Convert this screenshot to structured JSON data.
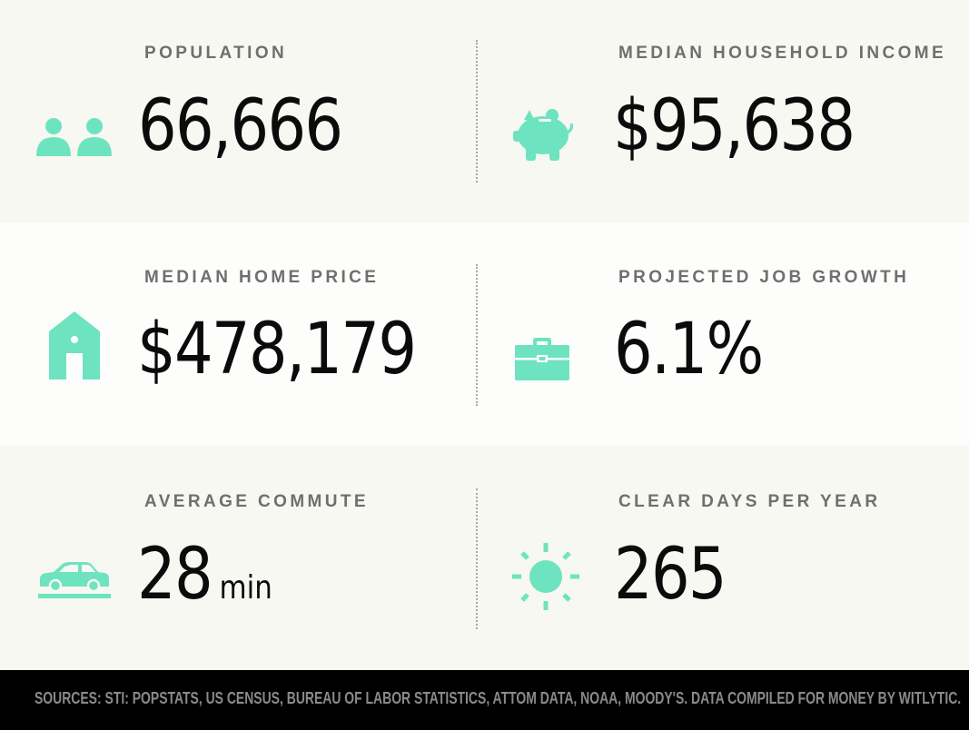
{
  "colors": {
    "icon": "#6ee3bf",
    "value_text": "#0b0b0b",
    "label_text": "#6f6f6f",
    "footer_bg": "#000000",
    "footer_text": "#8a8a8a"
  },
  "stats": {
    "population": {
      "label": "POPULATION",
      "value": "66,666",
      "icon": "people-icon"
    },
    "income": {
      "label": "MEDIAN HOUSEHOLD INCOME",
      "value": "$95,638",
      "icon": "piggy-bank-icon"
    },
    "home_price": {
      "label": "MEDIAN HOME PRICE",
      "value": "$478,179",
      "icon": "house-icon"
    },
    "job_growth": {
      "label": "PROJECTED JOB GROWTH",
      "value": "6.1%",
      "icon": "briefcase-icon"
    },
    "commute": {
      "label": "AVERAGE COMMUTE",
      "value": "28",
      "unit": "min",
      "icon": "car-icon"
    },
    "clear_days": {
      "label": "CLEAR DAYS PER YEAR",
      "value": "265",
      "icon": "sun-icon"
    }
  },
  "footer": {
    "sources": "SOURCES: STI: POPSTATS, US CENSUS, BUREAU OF LABOR STATISTICS, ATTOM DATA, NOAA, MOODY'S. DATA COMPILED FOR MONEY BY WITLYTIC."
  }
}
